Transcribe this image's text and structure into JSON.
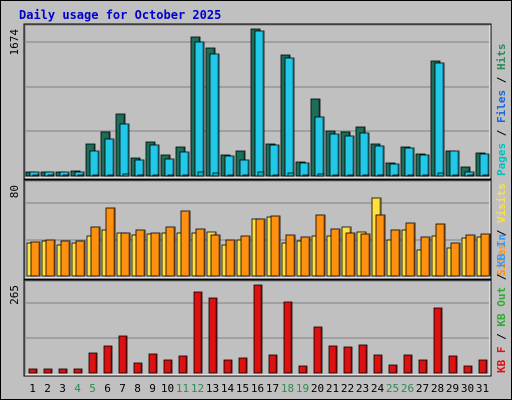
{
  "chart_data": {
    "title": "Daily usage for October 2025",
    "days": [
      "1",
      "2",
      "3",
      "4",
      "5",
      "6",
      "7",
      "8",
      "9",
      "10",
      "11",
      "12",
      "13",
      "14",
      "15",
      "16",
      "17",
      "18",
      "19",
      "20",
      "21",
      "22",
      "23",
      "24",
      "25",
      "26",
      "27",
      "28",
      "29",
      "30",
      "31"
    ],
    "weekend_days": [
      "4",
      "5",
      "11",
      "12",
      "18",
      "19",
      "25",
      "26"
    ],
    "colors": {
      "title": "#0000cc",
      "day_normal": "#000000",
      "day_weekend": "#2e8b57",
      "hits": "#1b6f5a",
      "files": "#22c8e8",
      "pages": "#00c0c0",
      "visits": "#ffe040",
      "sites": "#ff9010",
      "kbin": "#3399ff",
      "kbout": "#33aa33",
      "kbf": "#dd1111",
      "panel_bg": "#c0c0c0",
      "grid": "#808080"
    },
    "panels": [
      {
        "type": "bar",
        "max_label": "1674",
        "ymax": 1674,
        "side_labels": [
          {
            "text": "Pages",
            "color": "#00c0c0"
          },
          {
            "text": " / ",
            "color": "#000000"
          },
          {
            "text": "Files",
            "color": "#1166dd"
          },
          {
            "text": " / ",
            "color": "#000000"
          },
          {
            "text": "Hits",
            "color": "#2e8b57"
          }
        ],
        "series": [
          {
            "name": "Hits",
            "color": "#1b6f5a",
            "values": [
              45,
              45,
              45,
              55,
              370,
              500,
              710,
              210,
              390,
              240,
              330,
              1584,
              1454,
              240,
              290,
              1674,
              370,
              1375,
              160,
              880,
              515,
              500,
              560,
              370,
              150,
              330,
              250,
              1304,
              290,
              100,
              260
            ]
          },
          {
            "name": "Files",
            "color": "#22c8e8",
            "values": [
              40,
              40,
              40,
              45,
              290,
              420,
              590,
              180,
              350,
              190,
              270,
              1524,
              1394,
              230,
              180,
              1654,
              355,
              1347,
              150,
              670,
              480,
              460,
              490,
              340,
              140,
              320,
              240,
              1284,
              280,
              50,
              250
            ]
          },
          {
            "name": "Pages",
            "color": "#00c0c0",
            "values": [
              3,
              3,
              3,
              4,
              10,
              14,
              20,
              6,
              12,
              8,
              11,
              40,
              36,
              8,
              9,
              44,
              12,
              38,
              5,
              25,
              16,
              15,
              17,
              12,
              5,
              11,
              8,
              35,
              9,
              3,
              8
            ]
          }
        ]
      },
      {
        "type": "bar",
        "max_label": "80",
        "ymax": 80,
        "side_labels": [
          {
            "text": "Sites",
            "color": "#ff9010"
          },
          {
            "text": " / ",
            "color": "#000000"
          },
          {
            "text": "Visits",
            "color": "#ffe040"
          }
        ],
        "series": [
          {
            "name": "Visits",
            "color": "#ffe040",
            "values": [
              29,
              31,
              27,
              29,
              35,
              40,
              38,
              36,
              37,
              38,
              38,
              38,
              39,
              27,
              32,
              50,
              52,
              29,
              31,
              35,
              35,
              43,
              39,
              69,
              32,
              40,
              23,
              35,
              25,
              33,
              34
            ]
          },
          {
            "name": "Sites",
            "color": "#ff9010",
            "values": [
              30,
              32,
              31,
              31,
              43,
              60,
              38,
              40,
              38,
              43,
              57,
              41,
              36,
              32,
              35,
              50,
              53,
              36,
              34,
              54,
              41,
              38,
              37,
              54,
              40,
              47,
              34,
              46,
              29,
              36,
              37
            ]
          }
        ]
      },
      {
        "type": "bar",
        "max_label": "265",
        "ymax": 265,
        "side_labels": [
          {
            "text": "KB F",
            "color": "#dd1111"
          },
          {
            "text": " / ",
            "color": "#000000"
          },
          {
            "text": "KB Out",
            "color": "#33aa33"
          },
          {
            "text": " / ",
            "color": "#000000"
          },
          {
            "text": "KB In",
            "color": "#3399ff"
          }
        ],
        "series": [
          {
            "name": "KB F",
            "color": "#dd1111",
            "values": [
              12,
              12,
              12,
              12,
              60,
              80,
              110,
              30,
              58,
              38,
              50,
              245,
              225,
              40,
              45,
              265,
              55,
              215,
              20,
              138,
              80,
              78,
              85,
              55,
              24,
              55,
              38,
              195,
              50,
              20,
              40
            ]
          }
        ]
      }
    ]
  }
}
